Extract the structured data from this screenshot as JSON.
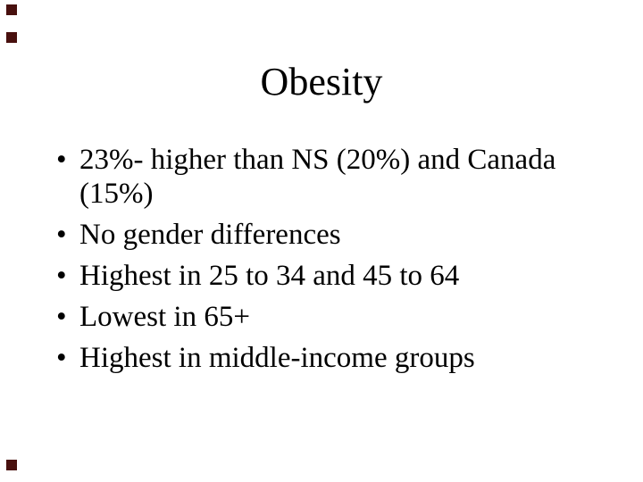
{
  "slide": {
    "title": "Obesity",
    "bullet_glyph": "•",
    "bullets": [
      "23%- higher than NS (20%) and Canada (15%)",
      "No gender differences",
      "Highest in 25 to 34 and 45 to 64",
      "Lowest in 65+",
      "Highest in middle-income groups"
    ],
    "text_color": "#000000",
    "background_color": "#ffffff"
  },
  "decorations": {
    "corner_marker_color": "#48100e"
  }
}
